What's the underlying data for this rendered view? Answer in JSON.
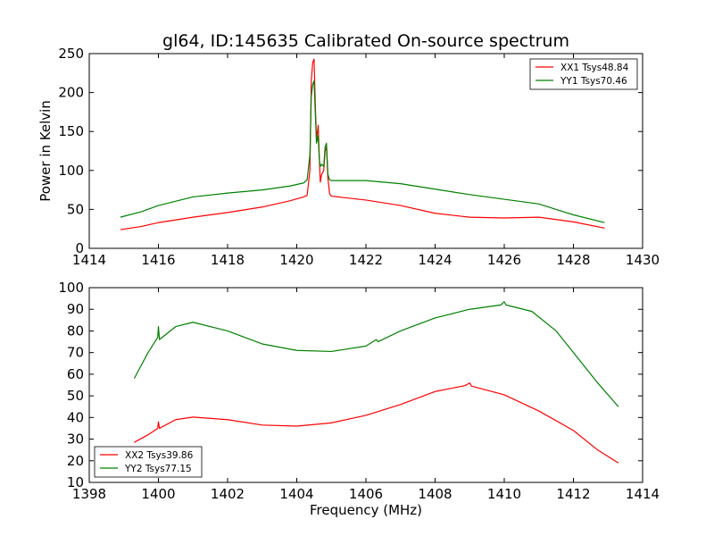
{
  "chart_data": [
    {
      "type": "line",
      "title": "gl64, ID:145635 Calibrated On-source spectrum",
      "xlabel": "",
      "ylabel": "Power in Kelvin",
      "xlim": [
        1414,
        1430
      ],
      "ylim": [
        0,
        250
      ],
      "xticks": [
        1414,
        1416,
        1418,
        1420,
        1422,
        1424,
        1426,
        1428,
        1430
      ],
      "yticks": [
        0,
        50,
        100,
        150,
        200,
        250
      ],
      "grid": false,
      "legend_position": "top-right",
      "series": [
        {
          "name": "XX1 Tsys48.84",
          "color": "#ff0000",
          "points": [
            [
              1414.9,
              24
            ],
            [
              1415.5,
              28
            ],
            [
              1416,
              33
            ],
            [
              1417,
              40
            ],
            [
              1418,
              46
            ],
            [
              1419,
              53
            ],
            [
              1419.8,
              61
            ],
            [
              1420.2,
              66
            ],
            [
              1420.3,
              68
            ],
            [
              1420.38,
              100
            ],
            [
              1420.42,
              215
            ],
            [
              1420.46,
              238
            ],
            [
              1420.5,
              243
            ],
            [
              1420.54,
              180
            ],
            [
              1420.57,
              140
            ],
            [
              1420.6,
              150
            ],
            [
              1420.62,
              158
            ],
            [
              1420.65,
              120
            ],
            [
              1420.68,
              85
            ],
            [
              1420.72,
              95
            ],
            [
              1420.78,
              100
            ],
            [
              1420.82,
              125
            ],
            [
              1420.86,
              130
            ],
            [
              1420.9,
              90
            ],
            [
              1420.95,
              70
            ],
            [
              1421,
              67
            ],
            [
              1422,
              62
            ],
            [
              1423,
              55
            ],
            [
              1424,
              45
            ],
            [
              1425,
              40
            ],
            [
              1426,
              39
            ],
            [
              1427,
              40
            ],
            [
              1428,
              34
            ],
            [
              1428.9,
              26
            ]
          ]
        },
        {
          "name": "YY1 Tsys70.46",
          "color": "#008000",
          "points": [
            [
              1414.9,
              40
            ],
            [
              1415.5,
              47
            ],
            [
              1416,
              55
            ],
            [
              1417,
              66
            ],
            [
              1418,
              71
            ],
            [
              1419,
              75
            ],
            [
              1419.8,
              80
            ],
            [
              1420.2,
              84
            ],
            [
              1420.3,
              88
            ],
            [
              1420.38,
              120
            ],
            [
              1420.42,
              195
            ],
            [
              1420.46,
              210
            ],
            [
              1420.5,
              215
            ],
            [
              1420.54,
              170
            ],
            [
              1420.57,
              135
            ],
            [
              1420.6,
              140
            ],
            [
              1420.62,
              145
            ],
            [
              1420.65,
              115
            ],
            [
              1420.68,
              105
            ],
            [
              1420.72,
              108
            ],
            [
              1420.78,
              105
            ],
            [
              1420.82,
              130
            ],
            [
              1420.86,
              135
            ],
            [
              1420.9,
              95
            ],
            [
              1420.95,
              88
            ],
            [
              1421,
              87
            ],
            [
              1422,
              87
            ],
            [
              1423,
              83
            ],
            [
              1424,
              76
            ],
            [
              1425,
              69
            ],
            [
              1426,
              63
            ],
            [
              1427,
              57
            ],
            [
              1428,
              43
            ],
            [
              1428.9,
              33
            ]
          ]
        }
      ]
    },
    {
      "type": "line",
      "title": "",
      "xlabel": "Frequency (MHz)",
      "ylabel": "",
      "xlim": [
        1398,
        1414
      ],
      "ylim": [
        10,
        100
      ],
      "xticks": [
        1398,
        1400,
        1402,
        1404,
        1406,
        1408,
        1410,
        1412,
        1414
      ],
      "yticks": [
        10,
        20,
        30,
        40,
        50,
        60,
        70,
        80,
        90,
        100
      ],
      "grid": false,
      "legend_position": "bottom-left",
      "series": [
        {
          "name": "XX2 Tsys39.86",
          "color": "#ff0000",
          "points": [
            [
              1399.3,
              28.5
            ],
            [
              1399.7,
              32
            ],
            [
              1399.98,
              35
            ],
            [
              1400,
              38
            ],
            [
              1400.03,
              35
            ],
            [
              1400.5,
              39
            ],
            [
              1401,
              40.2
            ],
            [
              1402,
              39
            ],
            [
              1403,
              36.5
            ],
            [
              1404,
              36
            ],
            [
              1405,
              37.5
            ],
            [
              1406,
              41
            ],
            [
              1407,
              46
            ],
            [
              1408,
              52
            ],
            [
              1408.8,
              54.5
            ],
            [
              1408.9,
              55
            ],
            [
              1409,
              56
            ],
            [
              1409.05,
              54.5
            ],
            [
              1410,
              50.5
            ],
            [
              1411,
              43
            ],
            [
              1412,
              34
            ],
            [
              1412.7,
              25
            ],
            [
              1413.3,
              19
            ]
          ]
        },
        {
          "name": "YY2 Tsys77.15",
          "color": "#008000",
          "points": [
            [
              1399.3,
              58
            ],
            [
              1399.7,
              70
            ],
            [
              1399.98,
              77
            ],
            [
              1400,
              82
            ],
            [
              1400.03,
              76
            ],
            [
              1400.5,
              82
            ],
            [
              1401,
              84
            ],
            [
              1402,
              80
            ],
            [
              1403,
              74
            ],
            [
              1404,
              71
            ],
            [
              1405,
              70.5
            ],
            [
              1406,
              73
            ],
            [
              1406.3,
              76
            ],
            [
              1406.35,
              75
            ],
            [
              1407,
              80
            ],
            [
              1408,
              86
            ],
            [
              1409,
              90
            ],
            [
              1409.9,
              92
            ],
            [
              1410,
              93.5
            ],
            [
              1410.05,
              92
            ],
            [
              1410.8,
              89
            ],
            [
              1411.5,
              80
            ],
            [
              1412,
              70
            ],
            [
              1412.7,
              56
            ],
            [
              1413.3,
              45
            ]
          ]
        }
      ]
    }
  ]
}
